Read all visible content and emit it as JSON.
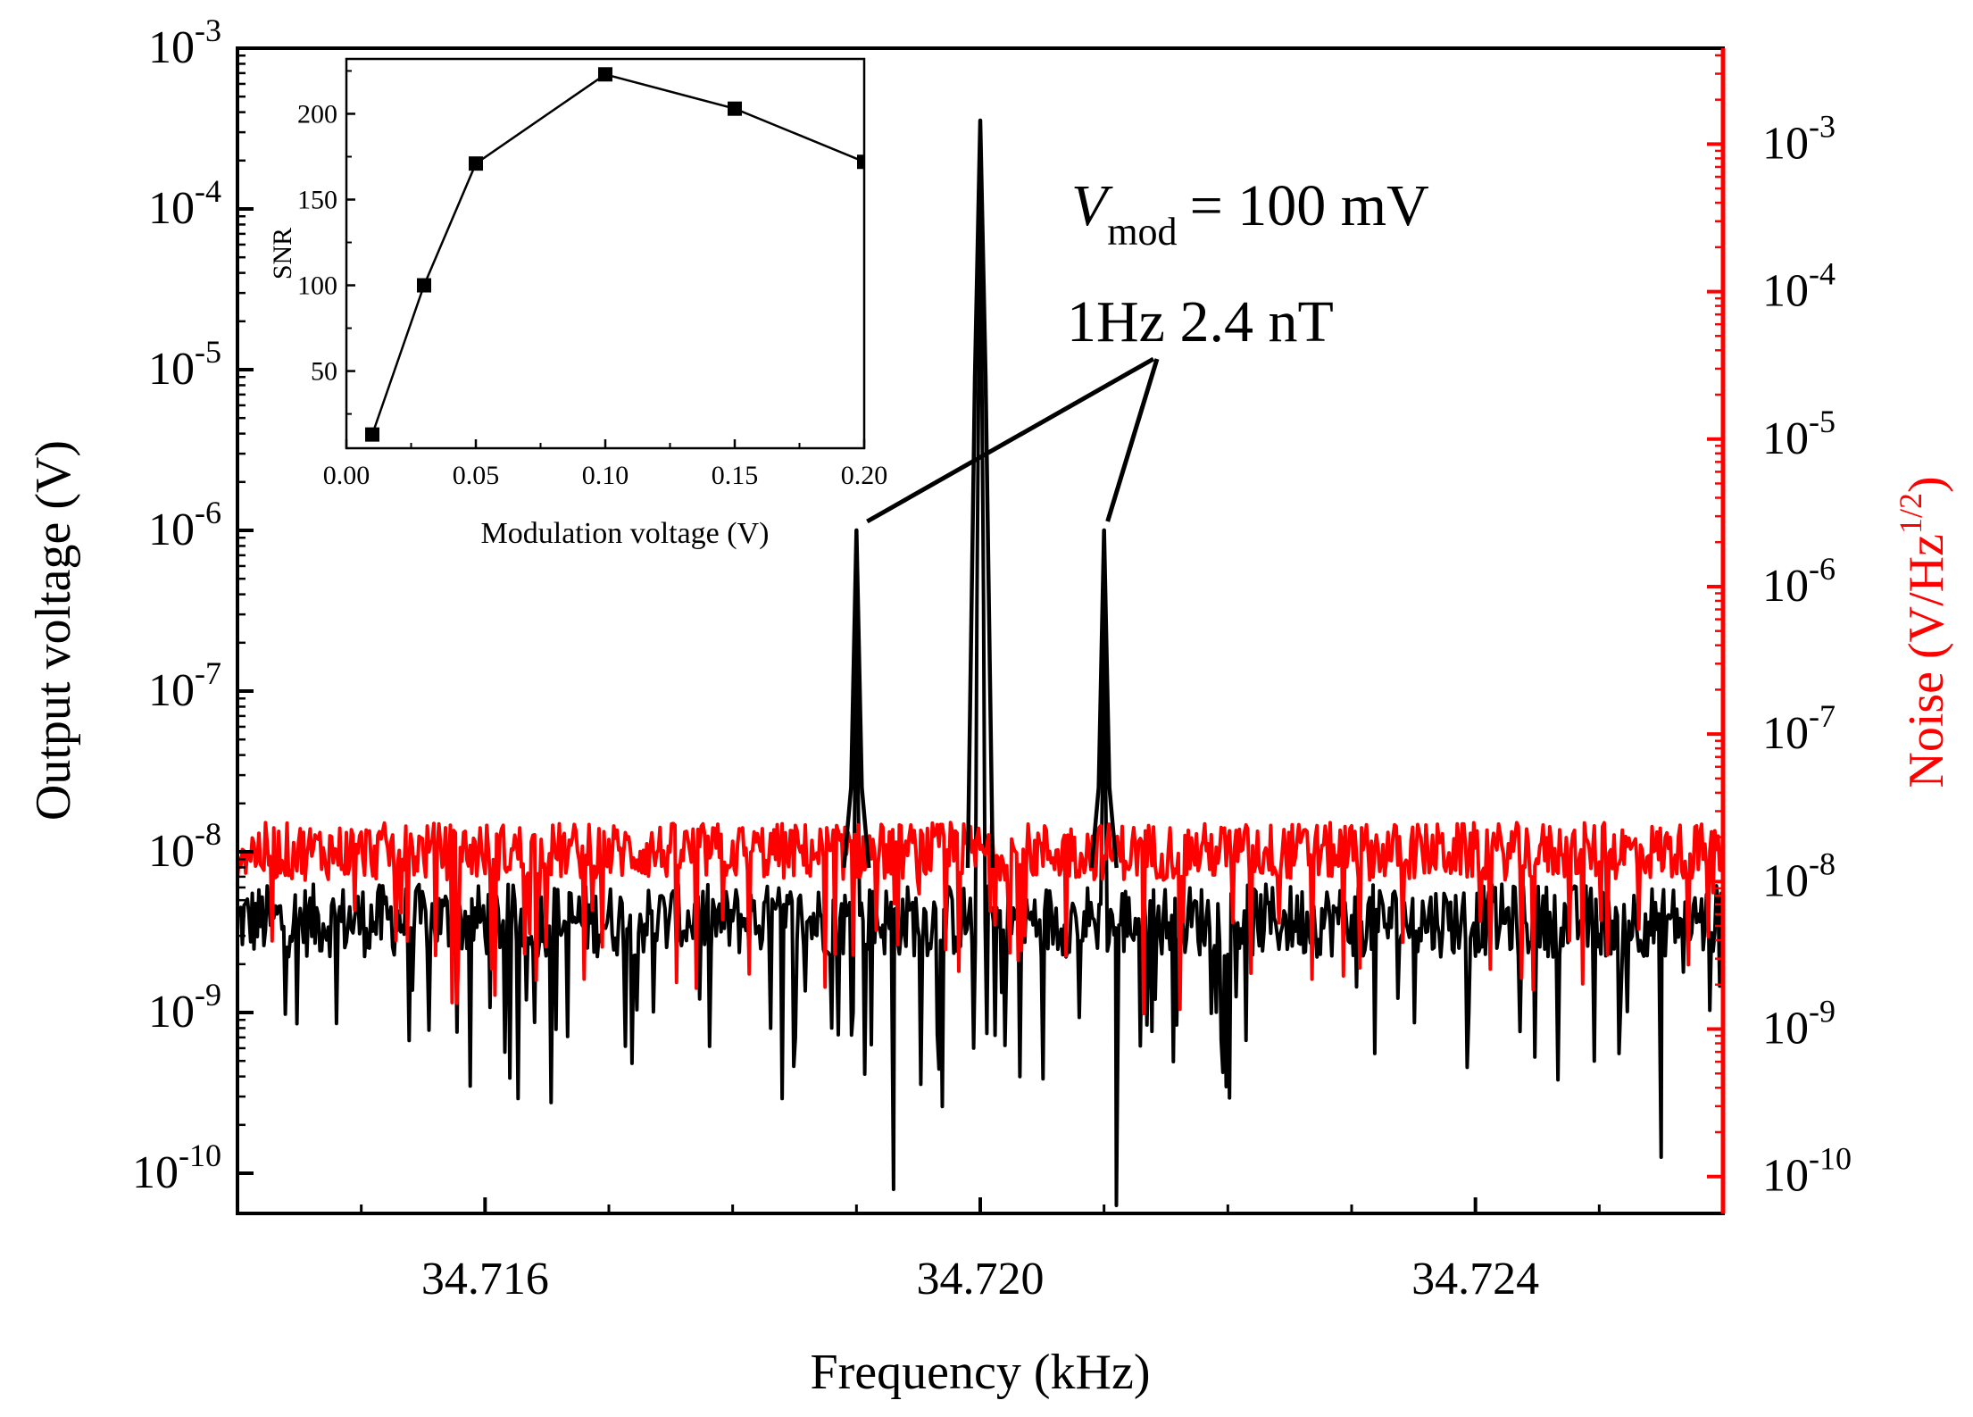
{
  "chart_data": [
    {
      "type": "line",
      "title": "",
      "xlabel": "Frequency (kHz)",
      "ylabel": "Output voltage (V)",
      "y2label_main": "Noise (V/Hz",
      "y2label_sup": "1/2",
      "y2label_close": ")",
      "xlim": [
        34.714,
        34.726
      ],
      "ylim_log10": [
        -10.25,
        -3.0
      ],
      "y2lim_log10": [
        -10.25,
        -2.35
      ],
      "x_ticks": [
        {
          "value": 34.716,
          "label": "34.716"
        },
        {
          "value": 34.72,
          "label": "34.720"
        },
        {
          "value": 34.724,
          "label": "34.724"
        }
      ],
      "y_ticks": [
        {
          "exp": -10,
          "base": "10",
          "sup": "-10"
        },
        {
          "exp": -9,
          "base": "10",
          "sup": "-9"
        },
        {
          "exp": -8,
          "base": "10",
          "sup": "-8"
        },
        {
          "exp": -7,
          "base": "10",
          "sup": "-7"
        },
        {
          "exp": -6,
          "base": "10",
          "sup": "-6"
        },
        {
          "exp": -5,
          "base": "10",
          "sup": "-5"
        },
        {
          "exp": -4,
          "base": "10",
          "sup": "-4"
        },
        {
          "exp": -3,
          "base": "10",
          "sup": "-3"
        }
      ],
      "y2_ticks": [
        {
          "exp": -10,
          "base": "10",
          "sup": "-10"
        },
        {
          "exp": -9,
          "base": "10",
          "sup": "-9"
        },
        {
          "exp": -8,
          "base": "10",
          "sup": "-8"
        },
        {
          "exp": -7,
          "base": "10",
          "sup": "-7"
        },
        {
          "exp": -6,
          "base": "10",
          "sup": "-6"
        },
        {
          "exp": -5,
          "base": "10",
          "sup": "-5"
        },
        {
          "exp": -4,
          "base": "10",
          "sup": "-4"
        },
        {
          "exp": -3,
          "base": "10",
          "sup": "-3"
        }
      ],
      "series": [
        {
          "name": "Output voltage",
          "axis": "left",
          "color": "#000000",
          "noise_floor_log10": [
            -8.9,
            -8.2
          ],
          "points": [
            [
              34.714,
              -8.6
            ],
            [
              34.7145,
              -8.9
            ],
            [
              34.715,
              -8.5
            ],
            [
              34.716,
              -8.6
            ],
            [
              34.717,
              -8.7
            ],
            [
              34.718,
              -8.6
            ],
            [
              34.7189,
              -8.5
            ],
            [
              34.719,
              -6.0
            ],
            [
              34.7191,
              -8.4
            ],
            [
              34.7193,
              -10.1
            ],
            [
              34.7199,
              -8.0
            ],
            [
              34.72,
              -3.45
            ],
            [
              34.7201,
              -8.0
            ],
            [
              34.721,
              -6.0
            ],
            [
              34.7211,
              -8.3
            ],
            [
              34.7211,
              -10.2
            ],
            [
              34.722,
              -8.6
            ],
            [
              34.723,
              -8.6
            ],
            [
              34.724,
              -8.7
            ],
            [
              34.725,
              -8.6
            ],
            [
              34.7255,
              -9.9
            ],
            [
              34.726,
              -8.7
            ]
          ]
        },
        {
          "name": "Noise",
          "axis": "right",
          "color": "#ff0000",
          "noise_floor_log10": [
            -8.2,
            -7.6
          ],
          "points": [
            [
              34.714,
              -8.0
            ],
            [
              34.715,
              -7.8
            ],
            [
              34.716,
              -7.9
            ],
            [
              34.717,
              -7.8
            ],
            [
              34.718,
              -7.9
            ],
            [
              34.719,
              -8.0
            ],
            [
              34.72,
              -7.9
            ],
            [
              34.721,
              -7.6
            ],
            [
              34.722,
              -7.8
            ],
            [
              34.723,
              -7.6
            ],
            [
              34.724,
              -7.8
            ],
            [
              34.725,
              -7.9
            ],
            [
              34.726,
              -8.0
            ]
          ]
        }
      ],
      "annotations": {
        "vmod_symbol": "V",
        "vmod_sub": "mod",
        "vmod_value": "= 100 mV",
        "field_label": "1Hz 2.4 nT",
        "pointer_targets": [
          34.719,
          34.721
        ]
      }
    },
    {
      "type": "line",
      "inset": true,
      "title": "",
      "xlabel": "Modulation voltage (V)",
      "ylabel": "SNR",
      "xlim": [
        0.0,
        0.2
      ],
      "ylim": [
        5,
        232
      ],
      "x_ticks": [
        "0.00",
        "0.05",
        "0.10",
        "0.15",
        "0.20"
      ],
      "y_ticks": [
        "50",
        "100",
        "150",
        "200"
      ],
      "x": [
        0.01,
        0.03,
        0.05,
        0.1,
        0.15,
        0.2
      ],
      "values": [
        13,
        100,
        171,
        223,
        203,
        172
      ],
      "marker": "square",
      "color": "#000000"
    }
  ]
}
